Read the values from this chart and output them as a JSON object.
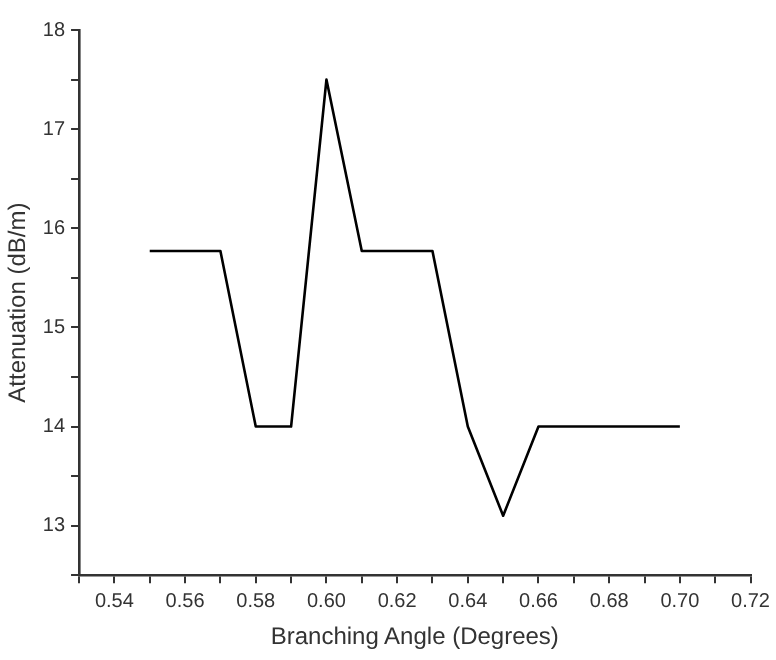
{
  "chart_data": {
    "type": "line",
    "xlabel": "Branching Angle (Degrees)",
    "ylabel": "Attenuation (dB/m)",
    "x": [
      0.55,
      0.57,
      0.58,
      0.59,
      0.6,
      0.61,
      0.63,
      0.64,
      0.65,
      0.66,
      0.7
    ],
    "series": [
      {
        "color": "#000000",
        "values": [
          15.77,
          15.77,
          14.0,
          14.0,
          17.5,
          15.77,
          15.77,
          14.0,
          13.1,
          14.0,
          14.0
        ]
      }
    ],
    "xlim": [
      0.53,
      0.72
    ],
    "xticks": [
      {
        "value": 0.53,
        "label": null
      },
      0.54,
      {
        "value": 0.55,
        "label": null
      },
      0.56,
      {
        "value": 0.57,
        "label": null
      },
      0.58,
      {
        "value": 0.59,
        "label": null
      },
      {
        "value": 0.6,
        "label": "0.60"
      },
      {
        "value": 0.61,
        "label": null
      },
      0.62,
      {
        "value": 0.63,
        "label": null
      },
      0.64,
      {
        "value": 0.65,
        "label": null
      },
      0.66,
      {
        "value": 0.67,
        "label": null
      },
      0.68,
      {
        "value": 0.69,
        "label": null
      },
      {
        "value": 0.7,
        "label": "0.70"
      },
      {
        "value": 0.71,
        "label": null
      },
      0.72
    ],
    "ylim": [
      12.5,
      18
    ],
    "yticks": [
      {
        "value": 12.5,
        "label": null
      },
      13,
      {
        "value": 13.5,
        "label": null
      },
      14,
      {
        "value": 14.5,
        "label": null
      },
      15,
      {
        "value": 15.5,
        "label": null
      },
      16,
      {
        "value": 16.5,
        "label": null
      },
      17,
      {
        "value": 17.5,
        "label": null
      },
      18
    ],
    "grid": false,
    "legend": false,
    "marker": "none",
    "line_style": "solid"
  }
}
